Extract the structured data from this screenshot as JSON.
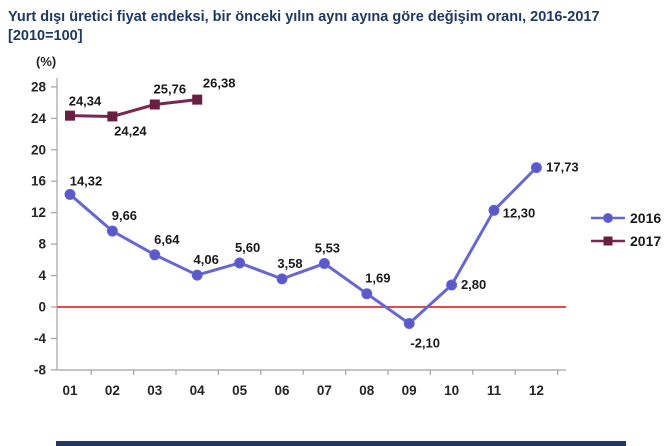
{
  "header": {
    "line1": "Yurt dışı üretici fiyat endeksi, bir önceki yılın aynı ayına göre değişim oranı, 2016-2017",
    "line2": "[2010=100]"
  },
  "unit_label": "(%)",
  "colors": {
    "title": "#1F3864",
    "axis": "#A3A3A3",
    "tick_text": "#262626",
    "label_text": "#1A1A1A",
    "zero_line": "#E03030",
    "bottom_bar": "#1F3864"
  },
  "chart_data": {
    "type": "line",
    "title": "Yurt dışı üretici fiyat endeksi, bir önceki yılın aynı ayına göre değişim oranı, 2016-2017 [2010=100]",
    "xlabel": "",
    "ylabel": "(%)",
    "ylim": [
      -8,
      28
    ],
    "yticks": [
      28,
      24,
      20,
      16,
      12,
      8,
      4,
      0,
      -4,
      -8
    ],
    "categories": [
      "01",
      "02",
      "03",
      "04",
      "05",
      "06",
      "07",
      "08",
      "09",
      "10",
      "11",
      "12"
    ],
    "grid": false,
    "zero_line": true,
    "legend_position": "right",
    "series": [
      {
        "name": "2016",
        "marker": "circle",
        "color": "#6767D2",
        "marker_color": "#5B59C8",
        "values": [
          14.32,
          9.66,
          6.64,
          4.06,
          5.6,
          3.58,
          5.53,
          1.69,
          -2.1,
          2.8,
          12.3,
          17.73
        ],
        "labels": [
          "14,32",
          "9,66",
          "6,64",
          "4,06",
          "5,60",
          "3,58",
          "5,53",
          "1,69",
          "-2,10",
          "2,80",
          "12,30",
          "17,73"
        ],
        "label_offsets": [
          [
            16,
            -9
          ],
          [
            12,
            -11
          ],
          [
            12,
            -11
          ],
          [
            9,
            -11
          ],
          [
            8,
            -11
          ],
          [
            8,
            -11
          ],
          [
            3,
            -11
          ],
          [
            11,
            -11
          ],
          [
            16,
            24
          ],
          [
            22,
            4
          ],
          [
            25,
            7
          ],
          [
            26,
            4
          ]
        ]
      },
      {
        "name": "2017",
        "marker": "square",
        "color": "#7C2750",
        "marker_color": "#681F41",
        "values": [
          24.34,
          24.24,
          25.76,
          26.38
        ],
        "labels": [
          "24,34",
          "24,24",
          "25,76",
          "26,38"
        ],
        "label_offsets": [
          [
            15,
            -10
          ],
          [
            18,
            19
          ],
          [
            15,
            -11
          ],
          [
            22,
            -12
          ]
        ]
      }
    ]
  }
}
